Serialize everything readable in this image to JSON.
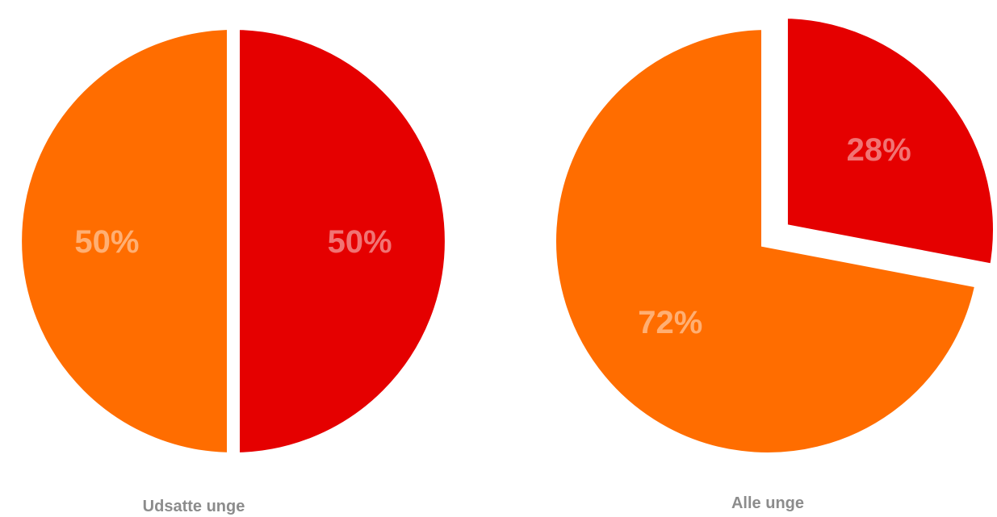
{
  "chart_data": [
    {
      "type": "pie",
      "title": "Udsatte unge",
      "slices": [
        {
          "label": "50%",
          "value": 50,
          "color": "#e50000"
        },
        {
          "label": "50%",
          "value": 50,
          "color": "#ff6d00"
        }
      ]
    },
    {
      "type": "pie",
      "title": "Alle unge",
      "slices": [
        {
          "label": "28%",
          "value": 28,
          "color": "#e50000",
          "exploded": true
        },
        {
          "label": "72%",
          "value": 72,
          "color": "#ff6d00"
        }
      ]
    }
  ]
}
